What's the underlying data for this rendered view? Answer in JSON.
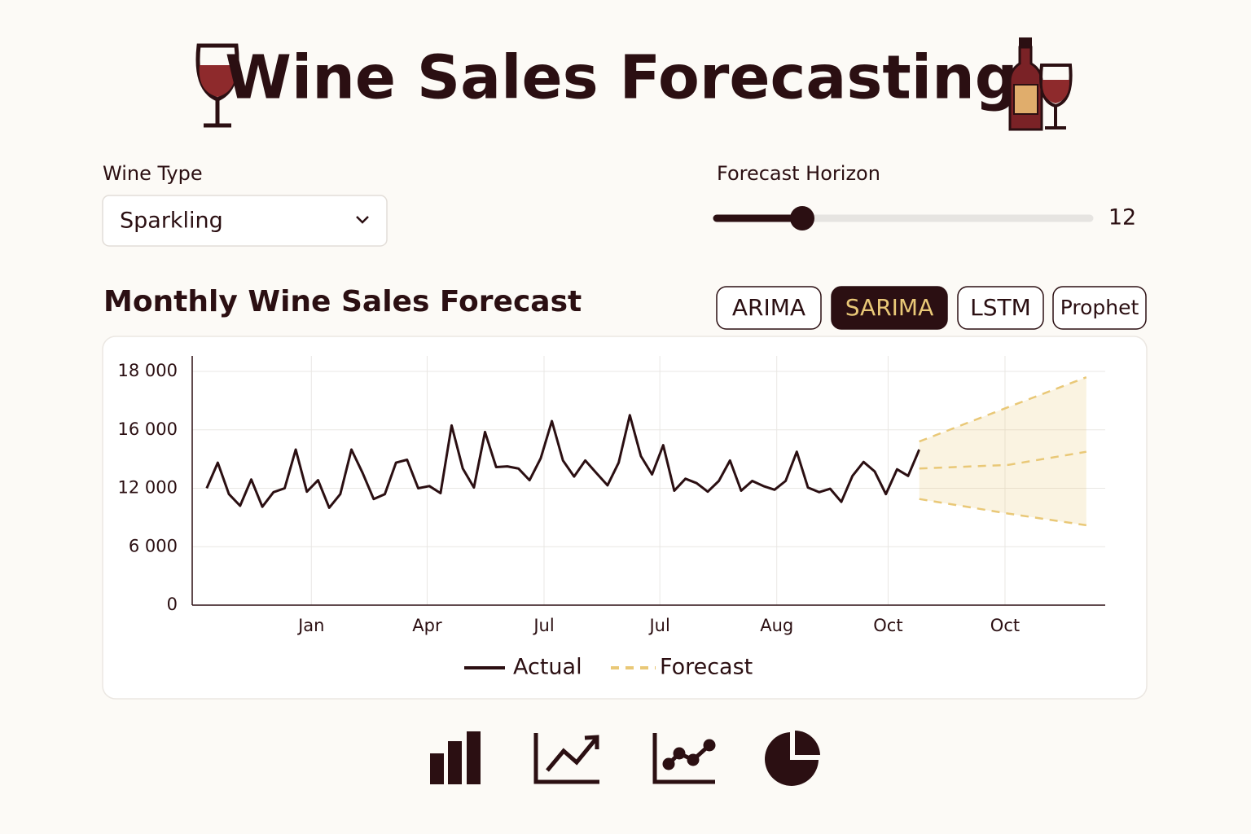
{
  "header": {
    "title": "Wine Sales Forecasting"
  },
  "controls": {
    "wine_type": {
      "label": "Wine Type",
      "value": "Sparkling"
    },
    "forecast_horizon": {
      "label": "Forecast Horizon",
      "value": 12
    }
  },
  "section_title": "Monthly Wine Sales Forecast",
  "model_tabs": [
    "ARIMA",
    "SARIMA",
    "LSTM",
    "Prophet"
  ],
  "active_model": 1,
  "chart_data": {
    "type": "line",
    "ylim": [
      0,
      18000
    ],
    "yticks": [
      0,
      {
        "value": 6000,
        "label": "6 000"
      },
      {
        "value": 12000,
        "label": "12 000"
      },
      {
        "value": 16000,
        "label": "16 000"
      },
      {
        "value": 18000,
        "label": "18 000"
      }
    ],
    "xlim": [
      -1.3,
      80.7
    ],
    "xticks": [
      {
        "value": 9.4,
        "label": "Jan"
      },
      {
        "value": 19.8,
        "label": "Apr"
      },
      {
        "value": 30.3,
        "label": "Jul"
      },
      {
        "value": 40.7,
        "label": "Jul"
      },
      {
        "value": 51.2,
        "label": "Aug"
      },
      {
        "value": 61.2,
        "label": "Oct"
      },
      {
        "value": 71.7,
        "label": "Oct"
      }
    ],
    "grid": true,
    "series": [
      {
        "name": "Actual",
        "color": "#2b0f12",
        "x": [
          0,
          1,
          2,
          3,
          4,
          5,
          6,
          7,
          8,
          9,
          10,
          11,
          12,
          13,
          14,
          15,
          16,
          17,
          18,
          19,
          20,
          21,
          22,
          23,
          24,
          25,
          26,
          27,
          28,
          29,
          30,
          31,
          32,
          33,
          34,
          35,
          36,
          37,
          38,
          39,
          40,
          41,
          42,
          43,
          44,
          45,
          46,
          47,
          48,
          49,
          50,
          51,
          52,
          53,
          54,
          55,
          56,
          57,
          58,
          59,
          60,
          61,
          62,
          63,
          64
        ],
        "values": [
          12000,
          13750,
          11400,
          10200,
          12600,
          10100,
          11600,
          12000,
          14650,
          11650,
          12550,
          10000,
          11400,
          14650,
          13050,
          10900,
          11400,
          13750,
          13950,
          12000,
          12150,
          11500,
          16150,
          13350,
          12050,
          15850,
          13450,
          13500,
          13350,
          12550,
          14050,
          16300,
          13900,
          12800,
          13900,
          13050,
          12200,
          13750,
          16500,
          14200,
          12950,
          14950,
          11750,
          12650,
          12350,
          11650,
          12500,
          13900,
          11750,
          12500,
          12150,
          11850,
          12500,
          14500,
          12050,
          11600,
          11950,
          10600,
          12850,
          13800,
          13150,
          11400,
          13300,
          12850,
          14650
        ]
      },
      {
        "name": "Forecast",
        "color": "#e9c877",
        "x": [
          64,
          72,
          79
        ],
        "values": [
          13350,
          13600,
          14500
        ],
        "upper": [
          15200,
          16780,
          17800
        ],
        "lower": [
          10900,
          9400,
          8200
        ]
      }
    ]
  }
}
